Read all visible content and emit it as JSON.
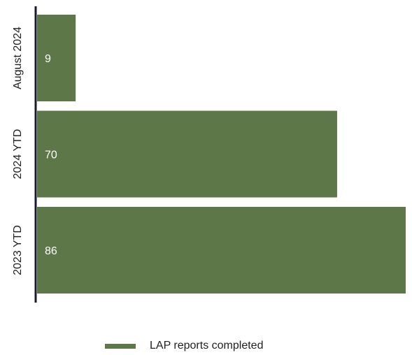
{
  "chart_data": {
    "type": "bar",
    "orientation": "horizontal",
    "categories": [
      "August 2024",
      "2024 YTD",
      "2023 YTD"
    ],
    "series": [
      {
        "name": "LAP reports completed",
        "values": [
          9,
          70,
          86
        ]
      }
    ],
    "xlim": [
      0,
      86
    ],
    "grid": false,
    "legend_position": "bottom",
    "colors": {
      "bar": "#5e7749",
      "axis": "#1a1a2e",
      "text": "#222222",
      "value_text": "#ffffff"
    }
  }
}
